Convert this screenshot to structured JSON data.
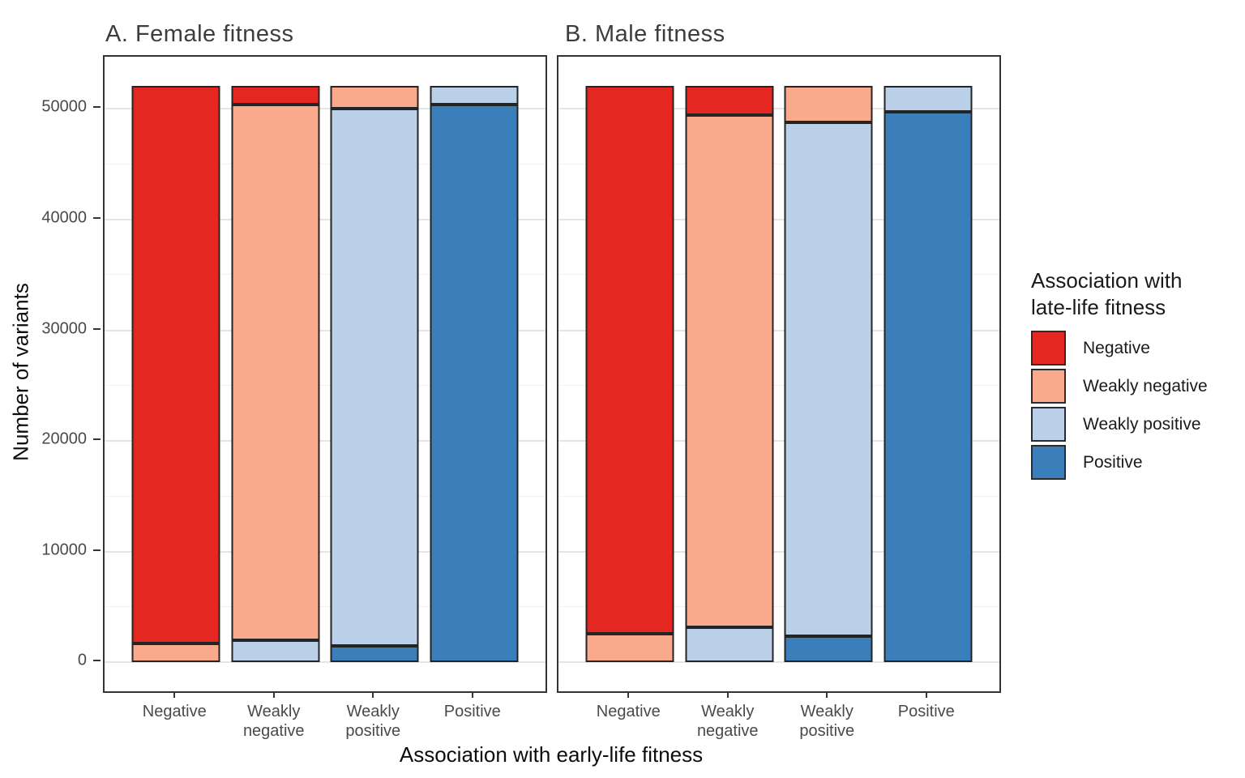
{
  "figure": {
    "x_axis_title": "Association with early-life fitness",
    "y_axis_title": "Number of variants",
    "legend": {
      "title_line1": "Association with",
      "title_line2": "late-life fitness",
      "items": [
        {
          "label": "Negative",
          "color": "#E52721"
        },
        {
          "label": "Weakly negative",
          "color": "#F9A98C"
        },
        {
          "label": "Weakly positive",
          "color": "#BBD1E9"
        },
        {
          "label": "Positive",
          "color": "#3A7FBA"
        }
      ]
    },
    "colors": {
      "bar_outline": "#242424",
      "panel_border": "#333333",
      "grid_major": "#E5E5E5",
      "axis_text": "#4A4A4A"
    }
  },
  "chart_data": [
    {
      "type": "bar",
      "stacked": true,
      "title": "A. Female fitness",
      "xlabel": "Association with early-life fitness",
      "ylabel": "Number of variants",
      "categories": [
        "Negative",
        "Weakly negative",
        "Weakly positive",
        "Positive"
      ],
      "categories_multiline": [
        "Negative",
        "Weakly\nnegative",
        "Weakly\npositive",
        "Positive"
      ],
      "stack_order_bottom_to_top": [
        "Positive",
        "Weakly positive",
        "Weakly negative",
        "Negative"
      ],
      "series": [
        {
          "name": "Negative",
          "color": "#E52721",
          "values": [
            50400,
            1700,
            0,
            0
          ]
        },
        {
          "name": "Weakly negative",
          "color": "#F9A98C",
          "values": [
            1700,
            48400,
            2100,
            0
          ]
        },
        {
          "name": "Weakly positive",
          "color": "#BBD1E9",
          "values": [
            0,
            2000,
            48500,
            1700
          ]
        },
        {
          "name": "Positive",
          "color": "#3A7FBA",
          "values": [
            0,
            0,
            1500,
            50400
          ]
        }
      ],
      "bar_totals": [
        52100,
        52100,
        52100,
        52100
      ],
      "y_ticks": [
        0,
        10000,
        20000,
        30000,
        40000,
        50000
      ],
      "y_minor_ticks": [
        5000,
        15000,
        25000,
        35000,
        45000
      ],
      "ylim": [
        -2600,
        54700
      ],
      "grid": true,
      "legend_position": "right"
    },
    {
      "type": "bar",
      "stacked": true,
      "title": "B. Male fitness",
      "xlabel": "Association with early-life fitness",
      "ylabel": "Number of variants",
      "categories": [
        "Negative",
        "Weakly negative",
        "Weakly positive",
        "Positive"
      ],
      "categories_multiline": [
        "Negative",
        "Weakly\nnegative",
        "Weakly\npositive",
        "Positive"
      ],
      "stack_order_bottom_to_top": [
        "Positive",
        "Weakly positive",
        "Weakly negative",
        "Negative"
      ],
      "series": [
        {
          "name": "Negative",
          "color": "#E52721",
          "values": [
            49500,
            2700,
            0,
            0
          ]
        },
        {
          "name": "Weakly negative",
          "color": "#F9A98C",
          "values": [
            2600,
            46200,
            3300,
            0
          ]
        },
        {
          "name": "Weakly positive",
          "color": "#BBD1E9",
          "values": [
            0,
            3200,
            46400,
            2400
          ]
        },
        {
          "name": "Positive",
          "color": "#3A7FBA",
          "values": [
            0,
            0,
            2400,
            49700
          ]
        }
      ],
      "bar_totals": [
        52100,
        52100,
        52100,
        52100
      ],
      "y_ticks": [
        0,
        10000,
        20000,
        30000,
        40000,
        50000
      ],
      "y_minor_ticks": [
        5000,
        15000,
        25000,
        35000,
        45000
      ],
      "ylim": [
        -2600,
        54700
      ],
      "grid": true,
      "legend_position": "right"
    }
  ]
}
